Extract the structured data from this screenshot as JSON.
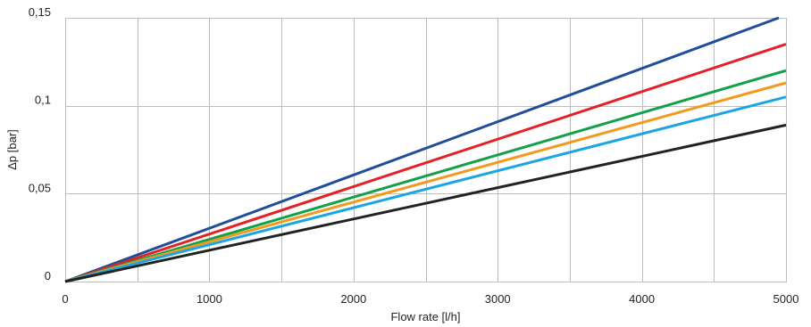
{
  "chart_data": {
    "type": "line",
    "title": "",
    "xlabel": "Flow rate [l/h]",
    "ylabel": "Δp [bar]",
    "xlim": [
      0,
      5000
    ],
    "ylim": [
      0,
      0.15
    ],
    "x_ticks": [
      0,
      1000,
      2000,
      3000,
      4000,
      5000
    ],
    "x_tick_labels": [
      "0",
      "1000",
      "2000",
      "3000",
      "4000",
      "5000"
    ],
    "y_ticks": [
      0,
      0.05,
      0.1,
      0.15
    ],
    "y_tick_labels": [
      "0",
      "0,05",
      "0,1",
      "0,15"
    ],
    "x_grid_step": 500,
    "y_grid_step": 0.05,
    "grid": true,
    "legend": "none",
    "series": [
      {
        "color": "#1f4e9c",
        "x": [
          0,
          4950
        ],
        "y": [
          0,
          0.15
        ]
      },
      {
        "color": "#e32228",
        "x": [
          0,
          5000
        ],
        "y": [
          0,
          0.135
        ]
      },
      {
        "color": "#12a04a",
        "x": [
          0,
          5000
        ],
        "y": [
          0,
          0.12
        ]
      },
      {
        "color": "#f39a1e",
        "x": [
          0,
          5000
        ],
        "y": [
          0,
          0.113
        ]
      },
      {
        "color": "#1aa6e4",
        "x": [
          0,
          5000
        ],
        "y": [
          0,
          0.105
        ]
      },
      {
        "color": "#222222",
        "x": [
          0,
          5000
        ],
        "y": [
          0,
          0.089
        ]
      }
    ]
  }
}
